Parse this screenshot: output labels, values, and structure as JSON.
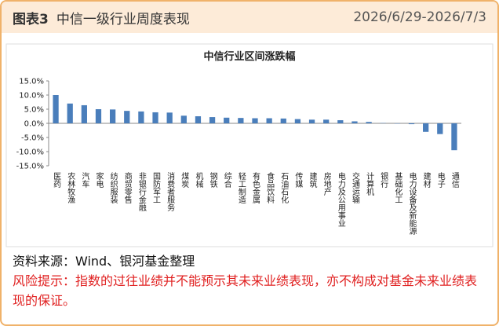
{
  "header": {
    "label": "图表3",
    "title": "中信一级行业周度表现",
    "date_range": "2026/6/29-2026/7/3"
  },
  "chart_data": {
    "type": "bar",
    "title": "中信行业区间涨跌幅",
    "color": "#4a7ebb",
    "categories": [
      "医药",
      "农林牧渔",
      "汽车",
      "家电",
      "纺织服装",
      "商贸零售",
      "非银行金融",
      "国防军工",
      "消费者服务",
      "煤炭",
      "机械",
      "钢铁",
      "综合",
      "轻工制造",
      "有色金属",
      "食品饮料",
      "石油石化",
      "传媒",
      "建筑",
      "房地产",
      "电力及公用事业",
      "交通运输",
      "计算机",
      "银行",
      "基础化工",
      "电力设备及新能源",
      "建材",
      "电子",
      "通信"
    ],
    "values": [
      10.0,
      7.0,
      6.4,
      5.0,
      4.9,
      4.4,
      4.2,
      3.9,
      3.8,
      2.7,
      2.5,
      2.2,
      2.0,
      1.9,
      1.8,
      1.8,
      1.7,
      1.5,
      1.3,
      1.3,
      1.1,
      0.7,
      0.5,
      0.1,
      -0.1,
      -0.3,
      -3.0,
      -3.8,
      -9.5
    ],
    "ylim": [
      -15,
      15
    ],
    "yticks": [
      {
        "value": 15,
        "label": "15.0%"
      },
      {
        "value": 10,
        "label": "10.0%"
      },
      {
        "value": 5,
        "label": "5.0%"
      },
      {
        "value": 0,
        "label": "0.0%"
      },
      {
        "value": -5,
        "label": "-5.0%"
      },
      {
        "value": -10,
        "label": "-10.0%"
      },
      {
        "value": -15,
        "label": "-15.0%"
      }
    ]
  },
  "footer": {
    "source": "资料来源：Wind、银河基金整理",
    "risk": "风险提示：指数的过往业绩并不能预示其未来业绩表现，亦不构成对基金未来业绩表现的保证。"
  }
}
